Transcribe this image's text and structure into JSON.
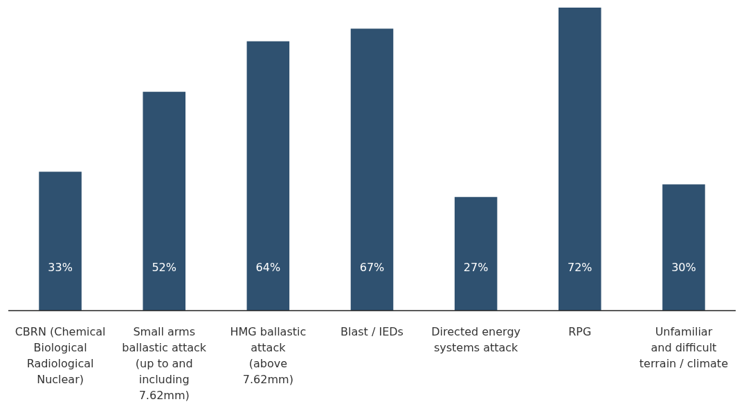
{
  "chart_data": {
    "type": "bar",
    "categories": [
      "CBRN (Chemical\nBiological\nRadiological\nNuclear)",
      "Small arms\nballastic attack\n(up to and\nincluding\n7.62mm)",
      "HMG ballastic\nattack\n(above\n7.62mm)",
      "Blast / IEDs",
      "Directed energy\nsystems attack",
      "RPG",
      "Unfamiliar\nand difficult\nterrain / climate"
    ],
    "values": [
      33,
      52,
      64,
      67,
      27,
      72,
      30
    ],
    "color": "#2f5170",
    "data_labels": true,
    "value_labels": [
      "33%",
      "52%",
      "64%",
      "67%",
      "27%",
      "72%",
      "30%"
    ]
  }
}
